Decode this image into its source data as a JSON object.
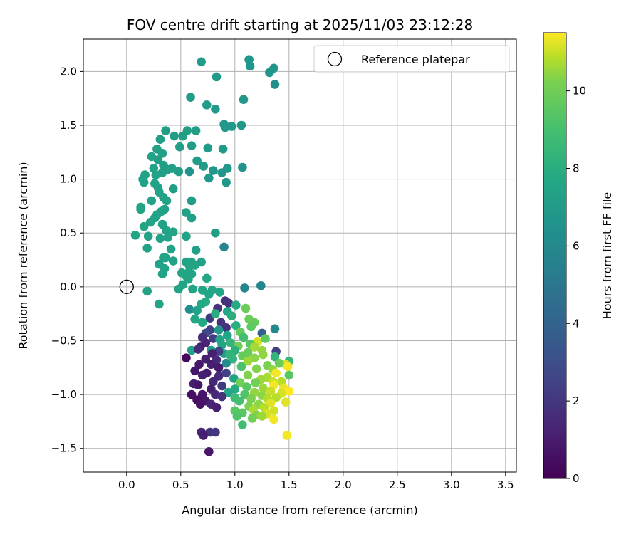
{
  "chart_data": {
    "type": "scatter",
    "title": "FOV centre drift starting at 2025/11/03 23:12:28",
    "xlabel": "Angular distance from reference (arcmin)",
    "ylabel": "Rotation from reference (arcmin)",
    "colorbar_label": "Hours from first FF file",
    "colormap": "viridis",
    "xlim": [
      -0.4,
      3.6
    ],
    "ylim": [
      -1.72,
      2.3
    ],
    "clim": [
      0,
      11.5
    ],
    "xticks": [
      0.0,
      0.5,
      1.0,
      1.5,
      2.0,
      2.5,
      3.0,
      3.5
    ],
    "xtick_labels": [
      "0.0",
      "0.5",
      "1.0",
      "1.5",
      "2.0",
      "2.5",
      "3.0",
      "3.5"
    ],
    "yticks": [
      -1.5,
      -1.0,
      -0.5,
      0.0,
      0.5,
      1.0,
      1.5,
      2.0
    ],
    "ytick_labels": [
      "−1.5",
      "−1.0",
      "−0.5",
      "0.0",
      "0.5",
      "1.0",
      "1.5",
      "2.0"
    ],
    "cticks": [
      0,
      2,
      4,
      6,
      8,
      10
    ],
    "ctick_labels": [
      "0",
      "2",
      "4",
      "6",
      "8",
      "10"
    ],
    "grid": true,
    "legend": {
      "label": "Reference platepar",
      "position": "top-right"
    },
    "reference_point": {
      "x": 0.0,
      "y": 0.0
    },
    "points": [
      [
        0.69,
        2.09,
        6.3
      ],
      [
        1.13,
        2.11,
        6.0
      ],
      [
        1.14,
        2.05,
        6.0
      ],
      [
        1.36,
        2.03,
        6.0
      ],
      [
        1.32,
        1.99,
        6.0
      ],
      [
        0.83,
        1.95,
        6.2
      ],
      [
        1.37,
        1.88,
        5.6
      ],
      [
        0.59,
        1.76,
        6.3
      ],
      [
        1.08,
        1.74,
        6.1
      ],
      [
        0.74,
        1.69,
        6.3
      ],
      [
        0.82,
        1.65,
        6.2
      ],
      [
        0.9,
        1.51,
        6.1
      ],
      [
        0.91,
        1.48,
        6.1
      ],
      [
        0.97,
        1.49,
        6.1
      ],
      [
        1.06,
        1.5,
        6.1
      ],
      [
        0.36,
        1.45,
        6.4
      ],
      [
        0.56,
        1.45,
        6.4
      ],
      [
        0.64,
        1.45,
        6.4
      ],
      [
        0.52,
        1.4,
        6.4
      ],
      [
        0.44,
        1.4,
        6.4
      ],
      [
        0.31,
        1.37,
        6.4
      ],
      [
        0.49,
        1.3,
        6.4
      ],
      [
        0.6,
        1.31,
        6.3
      ],
      [
        0.75,
        1.29,
        6.3
      ],
      [
        0.89,
        1.28,
        6.2
      ],
      [
        0.28,
        1.28,
        6.5
      ],
      [
        0.33,
        1.24,
        6.5
      ],
      [
        0.23,
        1.21,
        6.6
      ],
      [
        0.65,
        1.17,
        6.3
      ],
      [
        0.29,
        1.18,
        6.5
      ],
      [
        0.34,
        1.13,
        6.5
      ],
      [
        0.71,
        1.12,
        6.3
      ],
      [
        0.93,
        1.1,
        6.1
      ],
      [
        1.07,
        1.11,
        5.8
      ],
      [
        0.25,
        1.1,
        6.6
      ],
      [
        0.38,
        1.09,
        6.5
      ],
      [
        0.42,
        1.1,
        6.5
      ],
      [
        0.48,
        1.07,
        6.4
      ],
      [
        0.58,
        1.07,
        5.8
      ],
      [
        0.8,
        1.08,
        6.0
      ],
      [
        0.88,
        1.06,
        6.0
      ],
      [
        0.33,
        1.06,
        6.5
      ],
      [
        0.27,
        1.04,
        6.6
      ],
      [
        0.17,
        1.04,
        6.6
      ],
      [
        0.15,
        1.0,
        6.6
      ],
      [
        0.76,
        1.01,
        6.1
      ],
      [
        0.16,
        0.97,
        6.6
      ],
      [
        0.92,
        0.97,
        6.0
      ],
      [
        0.26,
        0.96,
        6.6
      ],
      [
        0.29,
        0.92,
        6.6
      ],
      [
        0.43,
        0.91,
        6.5
      ],
      [
        0.3,
        0.88,
        6.6
      ],
      [
        0.34,
        0.83,
        6.6
      ],
      [
        0.6,
        0.8,
        6.4
      ],
      [
        0.37,
        0.8,
        6.6
      ],
      [
        0.23,
        0.8,
        6.6
      ],
      [
        0.13,
        0.74,
        6.7
      ],
      [
        0.13,
        0.72,
        6.7
      ],
      [
        0.35,
        0.72,
        6.6
      ],
      [
        0.32,
        0.7,
        6.6
      ],
      [
        0.55,
        0.69,
        6.5
      ],
      [
        0.28,
        0.67,
        6.6
      ],
      [
        0.26,
        0.64,
        6.6
      ],
      [
        0.6,
        0.64,
        6.5
      ],
      [
        0.22,
        0.6,
        6.6
      ],
      [
        0.33,
        0.58,
        6.6
      ],
      [
        0.16,
        0.56,
        6.7
      ],
      [
        0.37,
        0.52,
        6.6
      ],
      [
        0.43,
        0.51,
        6.6
      ],
      [
        0.82,
        0.5,
        6.4
      ],
      [
        0.08,
        0.48,
        6.7
      ],
      [
        0.55,
        0.47,
        6.6
      ],
      [
        0.2,
        0.47,
        6.6
      ],
      [
        0.38,
        0.46,
        6.6
      ],
      [
        0.31,
        0.45,
        6.6
      ],
      [
        0.9,
        0.37,
        5.3
      ],
      [
        0.19,
        0.36,
        6.6
      ],
      [
        0.64,
        0.34,
        6.5
      ],
      [
        0.41,
        0.35,
        6.6
      ],
      [
        0.36,
        0.27,
        6.6
      ],
      [
        0.34,
        0.27,
        6.6
      ],
      [
        0.55,
        0.23,
        6.6
      ],
      [
        0.69,
        0.23,
        6.6
      ],
      [
        0.3,
        0.21,
        6.6
      ],
      [
        0.43,
        0.24,
        6.6
      ],
      [
        0.6,
        0.23,
        6.7
      ],
      [
        0.58,
        0.19,
        6.7
      ],
      [
        0.63,
        0.2,
        6.7
      ],
      [
        0.35,
        0.17,
        6.6
      ],
      [
        0.57,
        0.13,
        6.7
      ],
      [
        0.51,
        0.13,
        6.7
      ],
      [
        0.6,
        0.12,
        6.7
      ],
      [
        0.55,
        0.1,
        6.7
      ],
      [
        0.33,
        0.12,
        6.6
      ],
      [
        0.57,
        0.07,
        6.7
      ],
      [
        0.74,
        0.08,
        6.8
      ],
      [
        0.52,
        0.02,
        6.7
      ],
      [
        0.61,
        -0.02,
        6.7
      ],
      [
        0.7,
        -0.03,
        6.8
      ],
      [
        0.48,
        -0.02,
        6.7
      ],
      [
        0.79,
        -0.03,
        6.8
      ],
      [
        1.09,
        -0.01,
        5.2
      ],
      [
        1.24,
        0.01,
        5.2
      ],
      [
        0.19,
        -0.04,
        6.6
      ],
      [
        0.76,
        -0.07,
        6.8
      ],
      [
        0.86,
        -0.05,
        6.8
      ],
      [
        0.3,
        -0.16,
        6.7
      ],
      [
        0.73,
        -0.14,
        7.1
      ],
      [
        0.91,
        -0.13,
        1.5
      ],
      [
        0.94,
        -0.15,
        1.7
      ],
      [
        0.69,
        -0.16,
        6.9
      ],
      [
        1.01,
        -0.17,
        7.0
      ],
      [
        0.58,
        -0.21,
        5.5
      ],
      [
        0.65,
        -0.22,
        6.6
      ],
      [
        0.84,
        -0.2,
        1.7
      ],
      [
        0.93,
        -0.23,
        6.8
      ],
      [
        1.1,
        -0.2,
        8.9
      ],
      [
        0.97,
        -0.27,
        7.2
      ],
      [
        0.63,
        -0.3,
        6.8
      ],
      [
        0.77,
        -0.29,
        1.9
      ],
      [
        0.82,
        -0.25,
        7.1
      ],
      [
        0.7,
        -0.33,
        6.9
      ],
      [
        1.13,
        -0.3,
        8.9
      ],
      [
        0.87,
        -0.33,
        1.6
      ],
      [
        1.18,
        -0.33,
        8.8
      ],
      [
        0.92,
        -0.38,
        1.6
      ],
      [
        1.01,
        -0.36,
        7.2
      ],
      [
        1.15,
        -0.37,
        8.6
      ],
      [
        0.77,
        -0.4,
        2.2
      ],
      [
        0.85,
        -0.4,
        6.0
      ],
      [
        1.37,
        -0.39,
        5.4
      ],
      [
        0.73,
        -0.43,
        2.5
      ],
      [
        1.05,
        -0.42,
        8.7
      ],
      [
        0.93,
        -0.45,
        6.8
      ],
      [
        1.25,
        -0.43,
        3.5
      ],
      [
        0.7,
        -0.47,
        1.5
      ],
      [
        1.08,
        -0.47,
        8.0
      ],
      [
        0.8,
        -0.48,
        2.0
      ],
      [
        0.86,
        -0.49,
        6.8
      ],
      [
        1.21,
        -0.51,
        10.7
      ],
      [
        1.14,
        -0.53,
        8.5
      ],
      [
        1.28,
        -0.48,
        8.6
      ],
      [
        0.73,
        -0.52,
        1.2
      ],
      [
        0.96,
        -0.52,
        7.5
      ],
      [
        0.68,
        -0.56,
        1.0
      ],
      [
        0.88,
        -0.54,
        6.7
      ],
      [
        1.03,
        -0.55,
        9.0
      ],
      [
        1.18,
        -0.56,
        9.9
      ],
      [
        0.78,
        -0.59,
        6.2
      ],
      [
        1.0,
        -0.59,
        7.3
      ],
      [
        0.6,
        -0.59,
        6.6
      ],
      [
        0.66,
        -0.58,
        1.4
      ],
      [
        1.25,
        -0.59,
        9.7
      ],
      [
        0.9,
        -0.62,
        6.3
      ],
      [
        1.12,
        -0.61,
        8.8
      ],
      [
        0.85,
        -0.6,
        2.2
      ],
      [
        1.38,
        -0.6,
        2.2
      ],
      [
        0.79,
        -0.62,
        1.0
      ],
      [
        0.55,
        -0.66,
        0.3
      ],
      [
        0.95,
        -0.63,
        7.5
      ],
      [
        1.07,
        -0.64,
        8.8
      ],
      [
        1.26,
        -0.63,
        9.6
      ],
      [
        0.73,
        -0.67,
        1.0
      ],
      [
        1.18,
        -0.66,
        9.5
      ],
      [
        1.37,
        -0.65,
        7.5
      ],
      [
        0.83,
        -0.68,
        1.4
      ],
      [
        0.98,
        -0.67,
        7.5
      ],
      [
        1.12,
        -0.69,
        9.8
      ],
      [
        1.5,
        -0.69,
        7.6
      ],
      [
        1.47,
        -0.72,
        10.7
      ],
      [
        0.67,
        -0.72,
        0.8
      ],
      [
        0.78,
        -0.72,
        1.0
      ],
      [
        0.92,
        -0.71,
        5.5
      ],
      [
        1.3,
        -0.73,
        9.2
      ],
      [
        1.41,
        -0.71,
        8.9
      ],
      [
        1.49,
        -0.74,
        11.4
      ],
      [
        0.85,
        -0.75,
        0.9
      ],
      [
        1.06,
        -0.74,
        8.2
      ],
      [
        1.2,
        -0.76,
        9.3
      ],
      [
        1.35,
        -0.77,
        9.7
      ],
      [
        0.63,
        -0.78,
        0.7
      ],
      [
        0.74,
        -0.8,
        0.9
      ],
      [
        0.92,
        -0.8,
        2.2
      ],
      [
        1.38,
        -0.8,
        11.3
      ],
      [
        1.5,
        -0.82,
        8.5
      ],
      [
        0.7,
        -0.82,
        1.0
      ],
      [
        0.85,
        -0.83,
        1.4
      ],
      [
        1.12,
        -0.82,
        9.3
      ],
      [
        1.3,
        -0.84,
        10.0
      ],
      [
        0.99,
        -0.85,
        6.6
      ],
      [
        1.24,
        -0.86,
        9.8
      ],
      [
        1.35,
        -0.88,
        10.5
      ],
      [
        1.43,
        -0.88,
        10.3
      ],
      [
        0.8,
        -0.88,
        1.3
      ],
      [
        1.05,
        -0.89,
        9.0
      ],
      [
        1.19,
        -0.89,
        9.0
      ],
      [
        1.36,
        -0.91,
        11.3
      ],
      [
        0.62,
        -0.9,
        1.0
      ],
      [
        0.66,
        -0.91,
        0.7
      ],
      [
        0.88,
        -0.92,
        1.9
      ],
      [
        1.11,
        -0.93,
        8.5
      ],
      [
        1.26,
        -0.94,
        9.8
      ],
      [
        1.45,
        -0.94,
        11.2
      ],
      [
        0.78,
        -0.95,
        1.0
      ],
      [
        1.0,
        -0.95,
        7.0
      ],
      [
        1.33,
        -0.97,
        10.5
      ],
      [
        1.5,
        -0.97,
        11.5
      ],
      [
        0.94,
        -0.98,
        6.8
      ],
      [
        1.18,
        -0.98,
        9.6
      ],
      [
        1.43,
        -0.99,
        10.8
      ],
      [
        0.6,
        -1.0,
        0.5
      ],
      [
        0.7,
        -1.0,
        0.7
      ],
      [
        0.82,
        -1.0,
        1.3
      ],
      [
        1.09,
        -1.0,
        8.3
      ],
      [
        1.25,
        -1.01,
        9.5
      ],
      [
        0.88,
        -1.02,
        1.6
      ],
      [
        1.0,
        -1.03,
        7.8
      ],
      [
        1.38,
        -1.03,
        10.2
      ],
      [
        1.15,
        -1.04,
        9.2
      ],
      [
        1.3,
        -1.04,
        10.2
      ],
      [
        0.65,
        -1.05,
        0.4
      ],
      [
        0.73,
        -1.06,
        0.8
      ],
      [
        1.04,
        -1.06,
        8.0
      ],
      [
        1.47,
        -1.07,
        11.0
      ],
      [
        0.68,
        -1.09,
        0.6
      ],
      [
        0.78,
        -1.09,
        1.2
      ],
      [
        1.22,
        -1.09,
        9.5
      ],
      [
        1.33,
        -1.08,
        11.0
      ],
      [
        1.13,
        -1.11,
        9.2
      ],
      [
        0.83,
        -1.12,
        1.0
      ],
      [
        1.27,
        -1.12,
        10.3
      ],
      [
        1.17,
        -1.14,
        10.0
      ],
      [
        1.0,
        -1.15,
        8.5
      ],
      [
        1.36,
        -1.15,
        10.7
      ],
      [
        1.07,
        -1.17,
        8.5
      ],
      [
        1.3,
        -1.18,
        10.8
      ],
      [
        1.2,
        -1.19,
        9.3
      ],
      [
        1.25,
        -1.2,
        9.8
      ],
      [
        1.36,
        -1.23,
        11.3
      ],
      [
        1.16,
        -1.22,
        9.0
      ],
      [
        1.02,
        -1.2,
        8.3
      ],
      [
        1.07,
        -1.28,
        8.0
      ],
      [
        0.69,
        -1.35,
        1.2
      ],
      [
        0.77,
        -1.35,
        1.6
      ],
      [
        0.82,
        -1.35,
        1.8
      ],
      [
        0.71,
        -1.38,
        1.0
      ],
      [
        1.48,
        -1.38,
        11.3
      ],
      [
        0.76,
        -1.53,
        0.7
      ]
    ]
  }
}
